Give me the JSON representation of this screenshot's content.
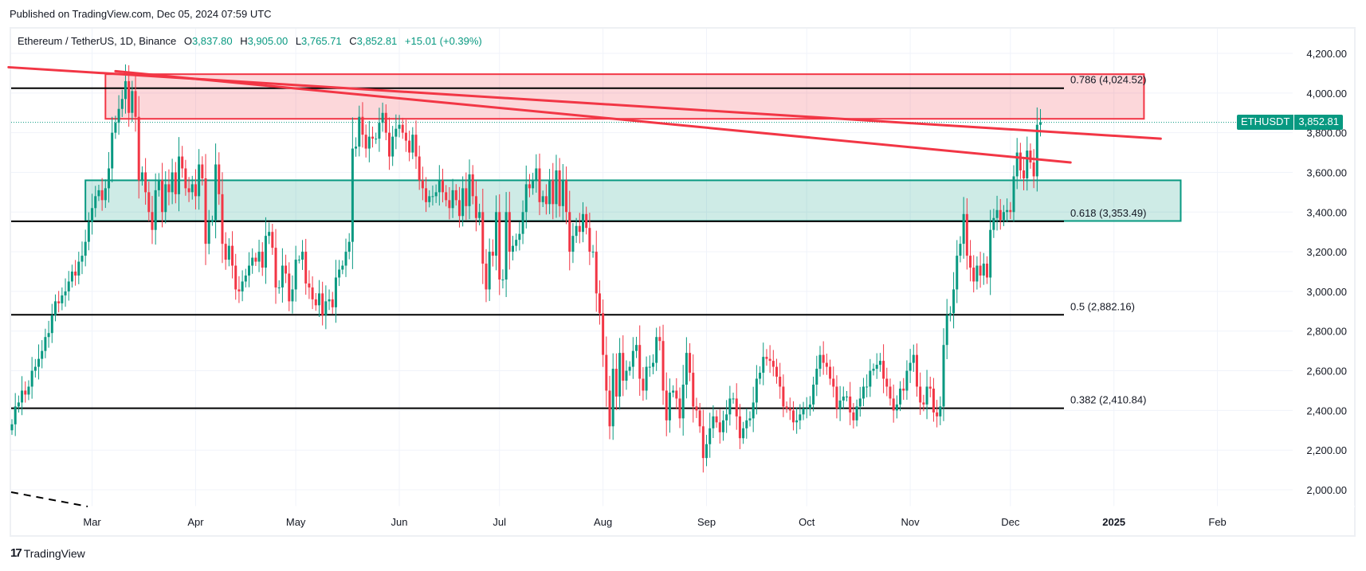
{
  "header": {
    "published": "Published on TradingView.com, Dec 05, 2024 07:59 UTC"
  },
  "legend": {
    "symbol": "Ethereum / TetherUS, 1D, Binance",
    "open_label": "O",
    "open": "3,837.80",
    "high_label": "H",
    "high": "3,905.00",
    "low_label": "L",
    "low": "3,765.71",
    "close_label": "C",
    "close": "3,852.81",
    "change": "+15.01 (+0.39%)"
  },
  "price_tag": {
    "ticker": "ETHUSDT",
    "price": "3,852.81"
  },
  "footer": {
    "brand": "TradingView",
    "logo": "17"
  },
  "colors": {
    "up": "#089981",
    "down": "#f23645",
    "fib_line": "#000000",
    "resistance_zone_fill": "#f2364533",
    "resistance_zone_border": "#f23645",
    "support_zone_fill": "#08998133",
    "support_zone_border": "#089981",
    "trendline": "#f23645",
    "grid": "#f0f3fa"
  },
  "chart_data": {
    "type": "candlestick",
    "title": "Ethereum / TetherUS, 1D, Binance",
    "xlabel": "",
    "ylabel": "",
    "ylim": [
      1900,
      4300
    ],
    "y_ticks": [
      "4,200.00",
      "4,000.00",
      "3,800.00",
      "3,600.00",
      "3,400.00",
      "3,200.00",
      "3,000.00",
      "2,800.00",
      "2,600.00",
      "2,400.00",
      "2,200.00",
      "2,000.00"
    ],
    "y_tick_values": [
      4200,
      4000,
      3800,
      3600,
      3400,
      3200,
      3000,
      2800,
      2600,
      2400,
      2200,
      2000
    ],
    "x_ticks": [
      {
        "label": "Mar",
        "day": 24,
        "bold": false
      },
      {
        "label": "Apr",
        "day": 55,
        "bold": false
      },
      {
        "label": "May",
        "day": 85,
        "bold": false
      },
      {
        "label": "Jun",
        "day": 116,
        "bold": false
      },
      {
        "label": "Jul",
        "day": 146,
        "bold": false
      },
      {
        "label": "Aug",
        "day": 177,
        "bold": false
      },
      {
        "label": "Sep",
        "day": 208,
        "bold": false
      },
      {
        "label": "Oct",
        "day": 238,
        "bold": false
      },
      {
        "label": "Nov",
        "day": 269,
        "bold": false
      },
      {
        "label": "Dec",
        "day": 299,
        "bold": false
      },
      {
        "label": "2025",
        "day": 330,
        "bold": true
      },
      {
        "label": "Feb",
        "day": 361,
        "bold": false
      }
    ],
    "fib_levels": [
      {
        "ratio": "0.786",
        "price": 4024.52,
        "label": "0.786 (4,024.52)"
      },
      {
        "ratio": "0.618",
        "price": 3353.49,
        "label": "0.618 (3,353.49)"
      },
      {
        "ratio": "0.5",
        "price": 2882.16,
        "label": "0.5 (2,882.16)"
      },
      {
        "ratio": "0.382",
        "price": 2410.84,
        "label": "0.382 (2,410.84)"
      }
    ],
    "zones": [
      {
        "name": "resistance",
        "day_start": 28,
        "day_end": 339,
        "price_top": 4095,
        "price_bottom": 3870
      },
      {
        "name": "support",
        "day_start": 22,
        "day_end": 350,
        "price_top": 3560,
        "price_bottom": 3355
      }
    ],
    "trendlines": [
      {
        "name": "upper-trendline",
        "from": {
          "day": -1,
          "price": 4130
        },
        "to": {
          "day": 344,
          "price": 3770
        }
      },
      {
        "name": "lower-trendline",
        "from": {
          "day": 31,
          "price": 4110
        },
        "to": {
          "day": 317,
          "price": 3650
        }
      }
    ],
    "closes": [
      2330,
      2420,
      2440,
      2500,
      2480,
      2520,
      2600,
      2620,
      2660,
      2700,
      2770,
      2790,
      2880,
      2950,
      2940,
      2980,
      3000,
      3050,
      3100,
      3080,
      3150,
      3180,
      3250,
      3350,
      3420,
      3480,
      3510,
      3460,
      3520,
      3620,
      3800,
      3850,
      3920,
      3970,
      4060,
      3900,
      4010,
      3880,
      3560,
      3600,
      3500,
      3400,
      3310,
      3510,
      3560,
      3400,
      3540,
      3500,
      3600,
      3490,
      3680,
      3620,
      3520,
      3500,
      3540,
      3480,
      3640,
      3570,
      3240,
      3350,
      3360,
      3640,
      3490,
      3240,
      3160,
      3230,
      3130,
      3010,
      3000,
      3050,
      3080,
      3130,
      3170,
      3150,
      3200,
      3120,
      3280,
      3300,
      3220,
      3020,
      3020,
      3130,
      3090,
      2950,
      3010,
      3160,
      3160,
      3200,
      3040,
      3020,
      2960,
      2930,
      2990,
      2880,
      2950,
      2960,
      2920,
      3070,
      3110,
      3130,
      3200,
      3250,
      3720,
      3730,
      3880,
      3790,
      3720,
      3780,
      3770,
      3770,
      3850,
      3900,
      3800,
      3680,
      3780,
      3820,
      3840,
      3800,
      3760,
      3700,
      3790,
      3680,
      3560,
      3520,
      3450,
      3480,
      3480,
      3500,
      3560,
      3500,
      3460,
      3420,
      3510,
      3460,
      3380,
      3520,
      3430,
      3590,
      3480,
      3370,
      3400,
      3140,
      3010,
      3200,
      3180,
      3400,
      3060,
      3060,
      3400,
      3200,
      3230,
      3260,
      3290,
      3400,
      3540,
      3520,
      3560,
      3620,
      3450,
      3480,
      3440,
      3560,
      3440,
      3610,
      3430,
      3560,
      3400,
      3200,
      3280,
      3330,
      3300,
      3390,
      3320,
      3200,
      3200,
      2990,
      2890,
      2680,
      2500,
      2320,
      2610,
      2470,
      2690,
      2550,
      2600,
      2620,
      2700,
      2730,
      2560,
      2500,
      2620,
      2620,
      2640,
      2770,
      2750,
      2500,
      2350,
      2490,
      2500,
      2460,
      2360,
      2530,
      2690,
      2590,
      2420,
      2400,
      2320,
      2160,
      2230,
      2310,
      2370,
      2340,
      2290,
      2350,
      2380,
      2460,
      2460,
      2370,
      2260,
      2310,
      2350,
      2360,
      2440,
      2560,
      2590,
      2670,
      2660,
      2650,
      2620,
      2570,
      2520,
      2420,
      2410,
      2400,
      2340,
      2350,
      2380,
      2410,
      2410,
      2430,
      2530,
      2610,
      2680,
      2640,
      2620,
      2560,
      2520,
      2410,
      2450,
      2470,
      2470,
      2390,
      2350,
      2420,
      2460,
      2520,
      2520,
      2600,
      2610,
      2630,
      2650,
      2560,
      2520,
      2460,
      2400,
      2430,
      2510,
      2500,
      2600,
      2640,
      2680,
      2520,
      2440,
      2430,
      2520,
      2510,
      2390,
      2370,
      2420,
      2730,
      2880,
      2890,
      3010,
      3180,
      3240,
      3390,
      3180,
      3120,
      3050,
      3130,
      3080,
      3140,
      3070,
      3310,
      3370,
      3410,
      3360,
      3400,
      3410,
      3400,
      3580,
      3700,
      3610,
      3570,
      3710,
      3650,
      3580,
      3840,
      3852
    ]
  }
}
